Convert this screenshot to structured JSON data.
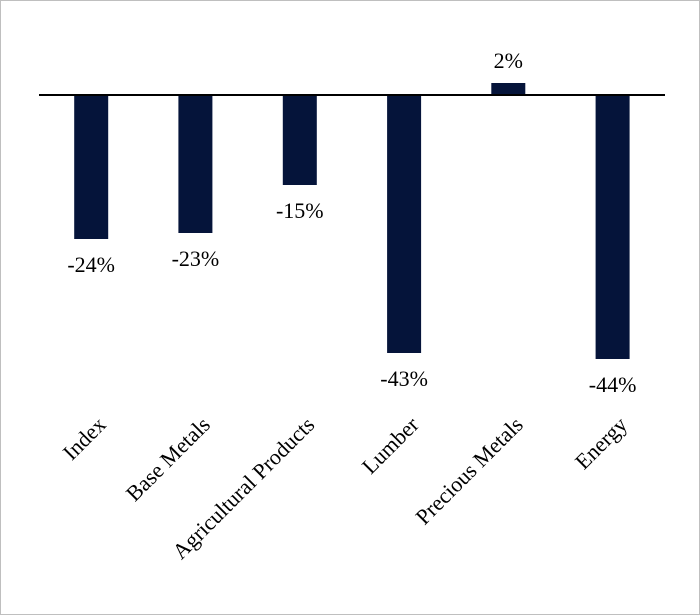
{
  "colors": {
    "bar": "#05143a",
    "axis": "#000000",
    "text": "#000000",
    "border": "#bfbfbf"
  },
  "chart_data": {
    "type": "bar",
    "title": "",
    "xlabel": "",
    "ylabel": "",
    "categories": [
      "Index",
      "Base Metals",
      "Agricultural Products",
      "Lumber",
      "Precious Metals",
      "Energy"
    ],
    "values": [
      -24,
      -23,
      -15,
      -43,
      2,
      -44
    ],
    "data_labels": [
      "-24%",
      "-23%",
      "-15%",
      "-43%",
      "2%",
      "-44%"
    ],
    "ylim": [
      -48,
      5
    ],
    "grid": false,
    "legend": "none"
  }
}
